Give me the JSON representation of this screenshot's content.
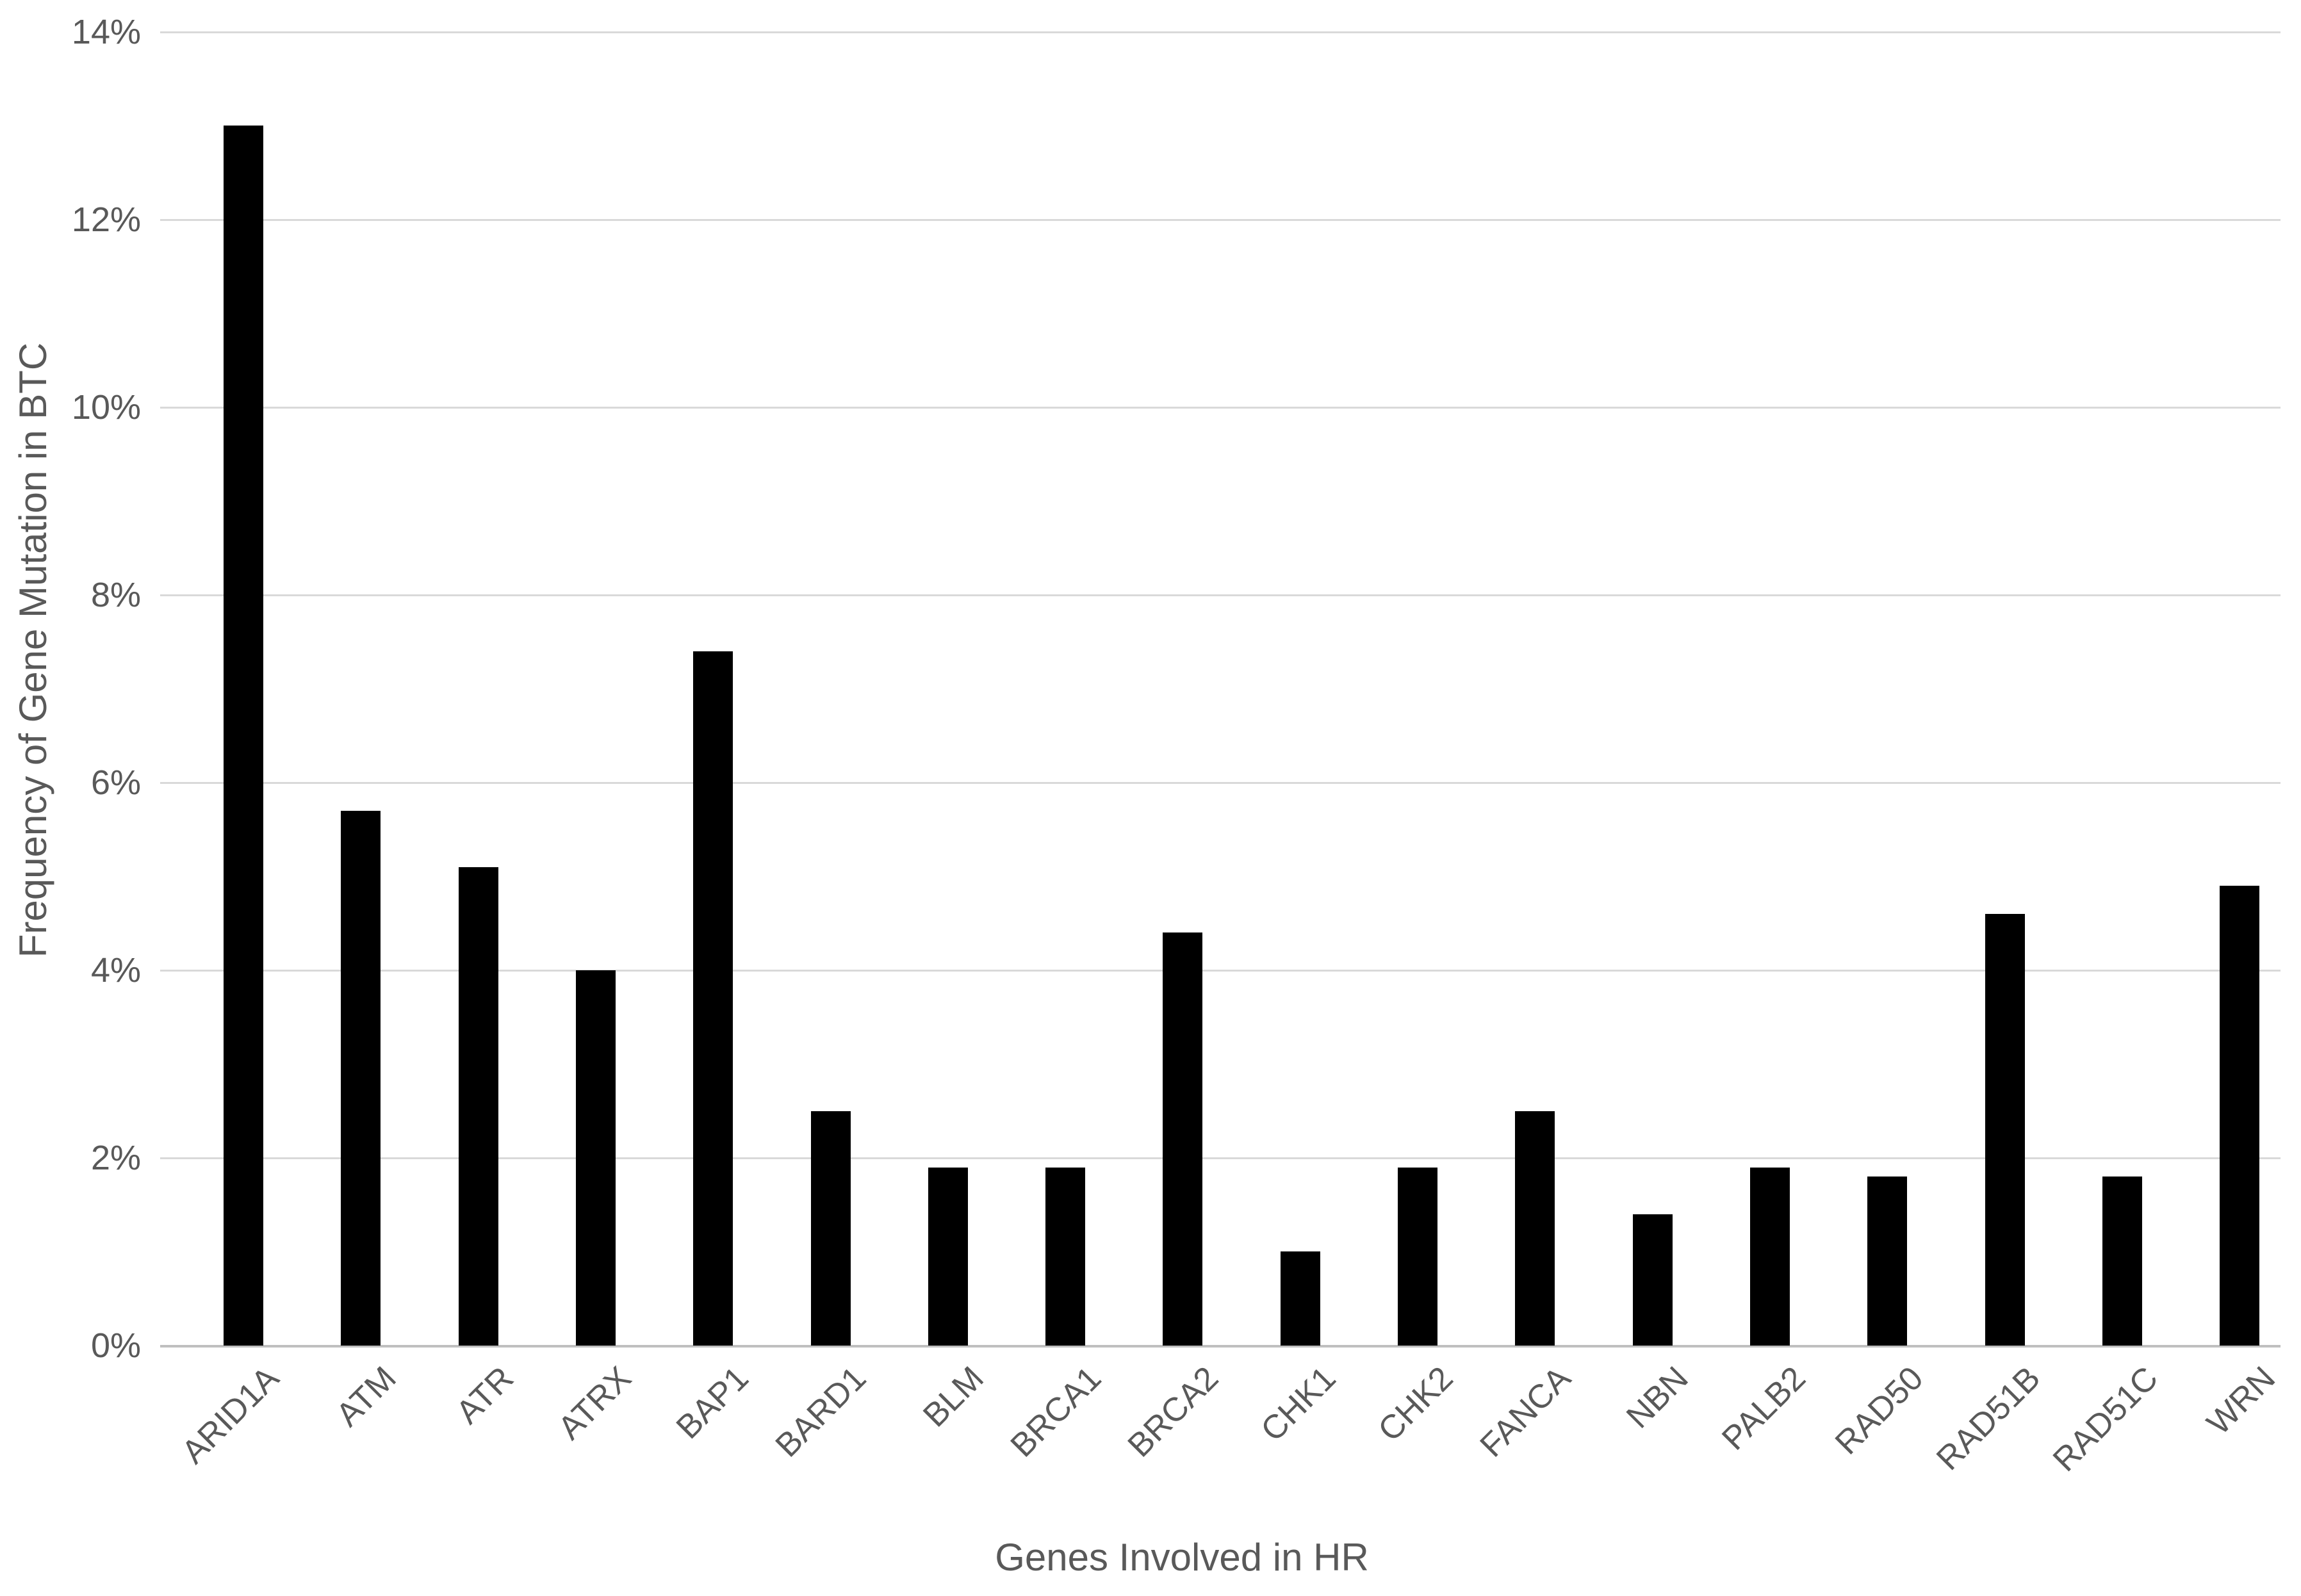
{
  "chart_data": {
    "type": "bar",
    "title": "",
    "categories": [
      "ARID1A",
      "ATM",
      "ATR",
      "ATRX",
      "BAP1",
      "BARD1",
      "BLM",
      "BRCA1",
      "BRCA2",
      "CHK1",
      "CHK2",
      "FANCA",
      "NBN",
      "PALB2",
      "RAD50",
      "RAD51B",
      "RAD51C",
      "WRN"
    ],
    "values": [
      13.0,
      5.7,
      5.1,
      4.0,
      7.4,
      2.5,
      1.9,
      1.9,
      4.4,
      1.0,
      1.9,
      2.5,
      1.4,
      1.9,
      1.8,
      4.6,
      1.8,
      4.9
    ],
    "xlabel": "Genes Involved in HR",
    "ylabel": "Frequency of Gene Mutation in BTC",
    "ylim": [
      0,
      14
    ],
    "ytick_step": 2,
    "ytick_labels": [
      "0%",
      "2%",
      "4%",
      "6%",
      "8%",
      "10%",
      "12%",
      "14%"
    ],
    "grid": true,
    "legend_position": "none",
    "bar_color": "#000000",
    "gridline_color": "#d9d9d9",
    "axis_line_color": "#bfbfbf",
    "text_color": "#595959",
    "background_color": "#ffffff"
  }
}
